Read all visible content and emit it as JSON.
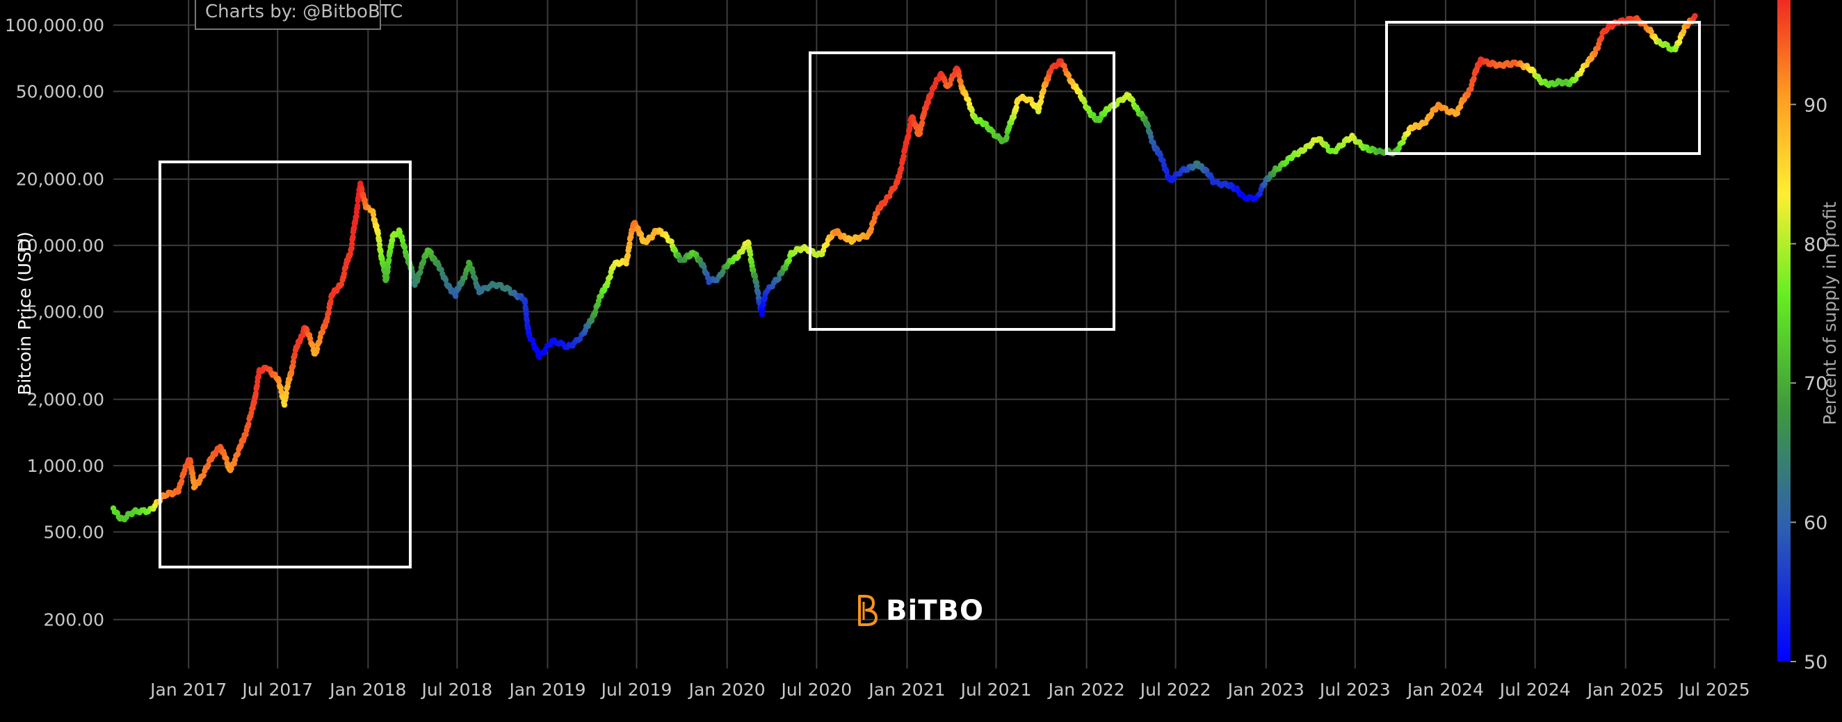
{
  "chart_data": {
    "type": "scatter",
    "title": "",
    "xlabel": "",
    "ylabel": "Bitcoin Price (USD)",
    "y_scale": "log",
    "ylim": [
      120,
      130000
    ],
    "xlim": [
      "2016-08-01",
      "2025-07-31"
    ],
    "x_ticks": [
      "2017-01-01",
      "2017-07-01",
      "2018-01-01",
      "2018-07-01",
      "2019-01-01",
      "2019-07-01",
      "2020-01-01",
      "2020-07-01",
      "2021-01-01",
      "2021-07-01",
      "2022-01-01",
      "2022-07-01",
      "2023-01-01",
      "2023-07-01",
      "2024-01-01",
      "2024-07-01",
      "2025-01-01",
      "2025-07-01"
    ],
    "x_tick_labels": [
      "Jan 2017",
      "Jul 2017",
      "Jan 2018",
      "Jul 2018",
      "Jan 2019",
      "Jul 2019",
      "Jan 2020",
      "Jul 2020",
      "Jan 2021",
      "Jul 2021",
      "Jan 2022",
      "Jul 2022",
      "Jan 2023",
      "Jul 2023",
      "Jan 2024",
      "Jul 2024",
      "Jan 2025",
      "Jul 2025"
    ],
    "y_ticks": [
      200,
      500,
      1000,
      2000,
      5000,
      10000,
      20000,
      50000,
      100000
    ],
    "y_tick_labels": [
      "200.00",
      "500.00",
      "1,000.00",
      "2,000.00",
      "5,000.00",
      "10,000.00",
      "20,000.00",
      "50,000.00",
      "100,000.00"
    ],
    "grid": true,
    "colorbar": {
      "label": "Percent of supply in profit",
      "range": [
        50,
        98
      ],
      "ticks": [
        50,
        60,
        70,
        80,
        90
      ],
      "colorscale": [
        "#0000ff",
        "#2e5fb0",
        "#3f9a3c",
        "#66ee22",
        "#ffee33",
        "#ff9922",
        "#ee2222"
      ]
    },
    "points": [
      {
        "d": "2016-08-01",
        "p": 640,
        "s": 73
      },
      {
        "d": "2016-08-20",
        "p": 575,
        "s": 70
      },
      {
        "d": "2016-09-15",
        "p": 608,
        "s": 71
      },
      {
        "d": "2016-10-15",
        "p": 640,
        "s": 75
      },
      {
        "d": "2016-11-10",
        "p": 712,
        "s": 91
      },
      {
        "d": "2016-12-10",
        "p": 775,
        "s": 93
      },
      {
        "d": "2017-01-04",
        "p": 1090,
        "s": 95
      },
      {
        "d": "2017-01-12",
        "p": 800,
        "s": 90
      },
      {
        "d": "2017-02-10",
        "p": 1000,
        "s": 93
      },
      {
        "d": "2017-03-05",
        "p": 1250,
        "s": 95
      },
      {
        "d": "2017-03-25",
        "p": 960,
        "s": 90
      },
      {
        "d": "2017-04-15",
        "p": 1180,
        "s": 93
      },
      {
        "d": "2017-05-10",
        "p": 1750,
        "s": 95
      },
      {
        "d": "2017-05-25",
        "p": 2650,
        "s": 97
      },
      {
        "d": "2017-06-10",
        "p": 2850,
        "s": 96
      },
      {
        "d": "2017-07-01",
        "p": 2450,
        "s": 92
      },
      {
        "d": "2017-07-15",
        "p": 1950,
        "s": 84
      },
      {
        "d": "2017-08-05",
        "p": 3200,
        "s": 96
      },
      {
        "d": "2017-08-25",
        "p": 4300,
        "s": 97
      },
      {
        "d": "2017-09-15",
        "p": 3250,
        "s": 88
      },
      {
        "d": "2017-10-05",
        "p": 4300,
        "s": 94
      },
      {
        "d": "2017-10-20",
        "p": 5900,
        "s": 97
      },
      {
        "d": "2017-11-10",
        "p": 7000,
        "s": 96
      },
      {
        "d": "2017-11-28",
        "p": 9800,
        "s": 97
      },
      {
        "d": "2017-12-10",
        "p": 15000,
        "s": 98
      },
      {
        "d": "2017-12-17",
        "p": 19300,
        "s": 98
      },
      {
        "d": "2017-12-28",
        "p": 14500,
        "s": 92
      },
      {
        "d": "2018-01-10",
        "p": 14500,
        "s": 88
      },
      {
        "d": "2018-01-20",
        "p": 11500,
        "s": 82
      },
      {
        "d": "2018-02-06",
        "p": 6900,
        "s": 68
      },
      {
        "d": "2018-02-20",
        "p": 11200,
        "s": 76
      },
      {
        "d": "2018-03-05",
        "p": 11500,
        "s": 76
      },
      {
        "d": "2018-03-25",
        "p": 8500,
        "s": 68
      },
      {
        "d": "2018-04-06",
        "p": 6700,
        "s": 62
      },
      {
        "d": "2018-05-05",
        "p": 9700,
        "s": 70
      },
      {
        "d": "2018-05-30",
        "p": 7500,
        "s": 63
      },
      {
        "d": "2018-06-28",
        "p": 5900,
        "s": 58
      },
      {
        "d": "2018-07-25",
        "p": 8200,
        "s": 68
      },
      {
        "d": "2018-08-15",
        "p": 6300,
        "s": 60
      },
      {
        "d": "2018-09-15",
        "p": 6500,
        "s": 62
      },
      {
        "d": "2018-10-15",
        "p": 6400,
        "s": 62
      },
      {
        "d": "2018-11-15",
        "p": 5600,
        "s": 55
      },
      {
        "d": "2018-11-25",
        "p": 3800,
        "s": 51
      },
      {
        "d": "2018-12-15",
        "p": 3200,
        "s": 50
      },
      {
        "d": "2019-01-10",
        "p": 3600,
        "s": 51
      },
      {
        "d": "2019-02-10",
        "p": 3500,
        "s": 52
      },
      {
        "d": "2019-03-15",
        "p": 3900,
        "s": 56
      },
      {
        "d": "2019-04-10",
        "p": 5200,
        "s": 68
      },
      {
        "d": "2019-05-15",
        "p": 8000,
        "s": 80
      },
      {
        "d": "2019-06-10",
        "p": 8500,
        "s": 84
      },
      {
        "d": "2019-06-26",
        "p": 13000,
        "s": 93
      },
      {
        "d": "2019-07-15",
        "p": 10200,
        "s": 86
      },
      {
        "d": "2019-08-10",
        "p": 11800,
        "s": 88
      },
      {
        "d": "2019-09-10",
        "p": 10300,
        "s": 80
      },
      {
        "d": "2019-10-01",
        "p": 8300,
        "s": 64
      },
      {
        "d": "2019-10-26",
        "p": 9500,
        "s": 72
      },
      {
        "d": "2019-11-25",
        "p": 7000,
        "s": 56
      },
      {
        "d": "2019-12-15",
        "p": 7200,
        "s": 60
      },
      {
        "d": "2020-01-15",
        "p": 8700,
        "s": 74
      },
      {
        "d": "2020-02-12",
        "p": 10300,
        "s": 82
      },
      {
        "d": "2020-03-12",
        "p": 4900,
        "s": 50
      },
      {
        "d": "2020-03-20",
        "p": 6300,
        "s": 54
      },
      {
        "d": "2020-04-15",
        "p": 7000,
        "s": 60
      },
      {
        "d": "2020-05-10",
        "p": 9200,
        "s": 76
      },
      {
        "d": "2020-06-10",
        "p": 9600,
        "s": 80
      },
      {
        "d": "2020-07-10",
        "p": 9200,
        "s": 78
      },
      {
        "d": "2020-08-10",
        "p": 11800,
        "s": 92
      },
      {
        "d": "2020-09-10",
        "p": 10300,
        "s": 86
      },
      {
        "d": "2020-10-15",
        "p": 11400,
        "s": 90
      },
      {
        "d": "2020-11-10",
        "p": 15500,
        "s": 96
      },
      {
        "d": "2020-12-10",
        "p": 18500,
        "s": 96
      },
      {
        "d": "2020-12-27",
        "p": 26500,
        "s": 97
      },
      {
        "d": "2021-01-10",
        "p": 38000,
        "s": 97
      },
      {
        "d": "2021-01-25",
        "p": 32000,
        "s": 93
      },
      {
        "d": "2021-02-15",
        "p": 48000,
        "s": 97
      },
      {
        "d": "2021-03-13",
        "p": 60000,
        "s": 97
      },
      {
        "d": "2021-03-25",
        "p": 53000,
        "s": 93
      },
      {
        "d": "2021-04-14",
        "p": 63000,
        "s": 97
      },
      {
        "d": "2021-04-25",
        "p": 50000,
        "s": 88
      },
      {
        "d": "2021-05-20",
        "p": 38000,
        "s": 76
      },
      {
        "d": "2021-06-20",
        "p": 33000,
        "s": 72
      },
      {
        "d": "2021-07-20",
        "p": 30000,
        "s": 68
      },
      {
        "d": "2021-08-15",
        "p": 46000,
        "s": 84
      },
      {
        "d": "2021-09-10",
        "p": 45000,
        "s": 84
      },
      {
        "d": "2021-09-25",
        "p": 42000,
        "s": 80
      },
      {
        "d": "2021-10-20",
        "p": 64000,
        "s": 96
      },
      {
        "d": "2021-11-10",
        "p": 67000,
        "s": 97
      },
      {
        "d": "2021-11-30",
        "p": 57000,
        "s": 88
      },
      {
        "d": "2021-12-20",
        "p": 47000,
        "s": 80
      },
      {
        "d": "2022-01-25",
        "p": 36000,
        "s": 70
      },
      {
        "d": "2022-02-15",
        "p": 43000,
        "s": 76
      },
      {
        "d": "2022-03-28",
        "p": 47000,
        "s": 80
      },
      {
        "d": "2022-04-25",
        "p": 39000,
        "s": 70
      },
      {
        "d": "2022-05-15",
        "p": 30000,
        "s": 58
      },
      {
        "d": "2022-06-20",
        "p": 20000,
        "s": 52
      },
      {
        "d": "2022-07-25",
        "p": 22000,
        "s": 56
      },
      {
        "d": "2022-08-15",
        "p": 24000,
        "s": 62
      },
      {
        "d": "2022-09-15",
        "p": 19500,
        "s": 54
      },
      {
        "d": "2022-10-15",
        "p": 19200,
        "s": 54
      },
      {
        "d": "2022-11-15",
        "p": 16500,
        "s": 50
      },
      {
        "d": "2022-12-15",
        "p": 16800,
        "s": 51
      },
      {
        "d": "2023-01-20",
        "p": 22500,
        "s": 68
      },
      {
        "d": "2023-02-15",
        "p": 24000,
        "s": 74
      },
      {
        "d": "2023-03-20",
        "p": 28000,
        "s": 78
      },
      {
        "d": "2023-04-15",
        "p": 30000,
        "s": 80
      },
      {
        "d": "2023-05-15",
        "p": 27000,
        "s": 74
      },
      {
        "d": "2023-06-25",
        "p": 30500,
        "s": 80
      },
      {
        "d": "2023-08-20",
        "p": 26000,
        "s": 68
      },
      {
        "d": "2023-09-20",
        "p": 26800,
        "s": 68
      },
      {
        "d": "2023-10-25",
        "p": 34000,
        "s": 86
      },
      {
        "d": "2023-11-25",
        "p": 37500,
        "s": 88
      },
      {
        "d": "2023-12-20",
        "p": 43000,
        "s": 91
      },
      {
        "d": "2024-01-25",
        "p": 40000,
        "s": 88
      },
      {
        "d": "2024-02-20",
        "p": 52000,
        "s": 94
      },
      {
        "d": "2024-03-14",
        "p": 71000,
        "s": 97
      },
      {
        "d": "2024-04-20",
        "p": 64000,
        "s": 93
      },
      {
        "d": "2024-05-25",
        "p": 69000,
        "s": 94
      },
      {
        "d": "2024-06-25",
        "p": 61000,
        "s": 82
      },
      {
        "d": "2024-07-10",
        "p": 57000,
        "s": 76
      },
      {
        "d": "2024-08-05",
        "p": 54000,
        "s": 72
      },
      {
        "d": "2024-09-06",
        "p": 54000,
        "s": 70
      },
      {
        "d": "2024-10-20",
        "p": 68000,
        "s": 88
      },
      {
        "d": "2024-11-15",
        "p": 90000,
        "s": 96
      },
      {
        "d": "2024-12-17",
        "p": 106000,
        "s": 97
      },
      {
        "d": "2025-01-20",
        "p": 105000,
        "s": 96
      },
      {
        "d": "2025-02-20",
        "p": 96000,
        "s": 90
      },
      {
        "d": "2025-03-10",
        "p": 82000,
        "s": 78
      },
      {
        "d": "2025-04-08",
        "p": 77000,
        "s": 74
      },
      {
        "d": "2025-05-01",
        "p": 95000,
        "s": 88
      },
      {
        "d": "2025-05-22",
        "p": 110000,
        "s": 97
      }
    ]
  },
  "credit": "Charts by: @BitboBTC",
  "logo_text": "BiTBO"
}
